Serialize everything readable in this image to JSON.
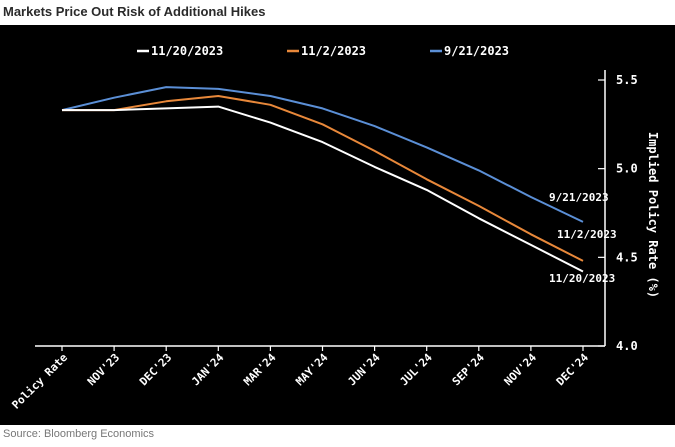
{
  "header": {
    "title": "Markets Price Out Risk of Additional Hikes"
  },
  "footer": {
    "source": "Source: Bloomberg Economics"
  },
  "colors": {
    "background": "#000000",
    "white_series": "#ffffff",
    "orange_series": "#e8883a",
    "blue_series": "#5b8fd6"
  },
  "chart_data": {
    "type": "line",
    "title": "Markets Price Out Risk of Additional Hikes",
    "ylabel": "Implied Policy Rate (%)",
    "xlabel": "",
    "ylim": [
      4.0,
      5.5
    ],
    "yticks": [
      "4.0",
      "4.5",
      "5.0",
      "5.5"
    ],
    "categories": [
      "Policy Rate",
      "NOV'23",
      "DEC'23",
      "JAN'24",
      "MAR'24",
      "MAY'24",
      "JUN'24",
      "JUL'24",
      "SEP'24",
      "NOV'24",
      "DEC'24"
    ],
    "legend_position": "top",
    "grid": false,
    "series": [
      {
        "name": "11/20/2023",
        "color": "#ffffff",
        "values": [
          5.33,
          5.33,
          5.34,
          5.35,
          5.26,
          5.15,
          5.01,
          4.88,
          4.72,
          4.57,
          4.42
        ]
      },
      {
        "name": "11/2/2023",
        "color": "#e8883a",
        "values": [
          5.33,
          5.33,
          5.38,
          5.41,
          5.36,
          5.25,
          5.1,
          4.94,
          4.79,
          4.63,
          4.48
        ]
      },
      {
        "name": "9/21/2023",
        "color": "#5b8fd6",
        "values": [
          5.33,
          5.4,
          5.46,
          5.45,
          5.41,
          5.34,
          5.24,
          5.12,
          4.99,
          4.84,
          4.7
        ]
      }
    ],
    "end_labels": [
      "9/21/2023",
      "11/2/2023",
      "11/20/2023"
    ]
  }
}
